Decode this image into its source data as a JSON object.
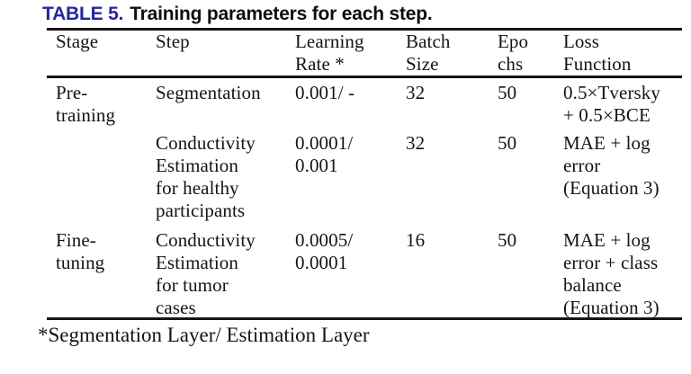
{
  "caption": {
    "label": "TABLE 5.",
    "text": "Training parameters for each step."
  },
  "colors": {
    "background": "#ffffff",
    "caption_label": "#26269B",
    "caption_text": "#0e0e0e",
    "body_text": "#141414",
    "rule": "#151515"
  },
  "table": {
    "columns": {
      "stage": "Stage",
      "step": "Step",
      "learning_rate": "Learning\nRate *",
      "batch_size": "Batch\nSize",
      "epochs": "Epo\nchs",
      "loss_function": "Loss\nFunction"
    },
    "rows": [
      {
        "stage": "Pre-\ntraining",
        "step": "Segmentation",
        "learning_rate": "0.001/ -",
        "batch_size": "32",
        "epochs": "50",
        "loss_function": "0.5×Tversky\n+ 0.5×BCE"
      },
      {
        "stage": "",
        "step": "Conductivity\nEstimation\nfor healthy\nparticipants",
        "learning_rate": "0.0001/\n0.001",
        "batch_size": "32",
        "epochs": "50",
        "loss_function": "MAE + log\nerror\n(Equation 3)"
      },
      {
        "stage": "Fine-\ntuning",
        "step": "Conductivity\nEstimation\nfor tumor\ncases",
        "learning_rate": "0.0005/\n0.0001",
        "batch_size": "16",
        "epochs": "50",
        "loss_function": "MAE + log\nerror + class\nbalance\n(Equation 3)"
      }
    ],
    "footnote": "*Segmentation Layer/ Estimation Layer"
  }
}
